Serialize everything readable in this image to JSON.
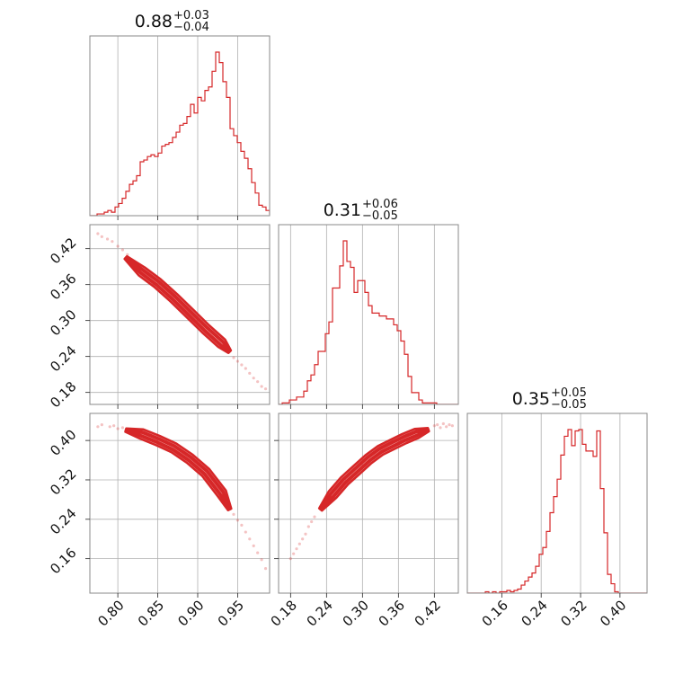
{
  "chart_data": {
    "type": "corner",
    "color": "#d62728",
    "grid": true,
    "parameters": [
      {
        "title": {
          "median": "0.88",
          "plus": "+0.03",
          "minus": "−0.04"
        },
        "range": [
          0.765,
          0.99
        ],
        "ticks": [
          0.8,
          0.85,
          0.9,
          0.95
        ],
        "tick_labels": [
          "0.80",
          "0.85",
          "0.90",
          "0.95"
        ],
        "hist": {
          "edges_start": 0.765,
          "bin_width": 0.0045,
          "counts": [
            0,
            0,
            1,
            1,
            2,
            3,
            2,
            5,
            7,
            10,
            14,
            18,
            20,
            23,
            31,
            32,
            34,
            35,
            34,
            36,
            40,
            41,
            42,
            45,
            48,
            52,
            53,
            57,
            64,
            59,
            68,
            66,
            72,
            74,
            83,
            94,
            88,
            77,
            68,
            50,
            46,
            42,
            37,
            33,
            27,
            19,
            13,
            6,
            5,
            3,
            1,
            1
          ]
        }
      },
      {
        "title": {
          "median": "0.31",
          "plus": "+0.06",
          "minus": "−0.05"
        },
        "range": [
          0.16,
          0.46
        ],
        "ticks": [
          0.18,
          0.24,
          0.3,
          0.36,
          0.42
        ],
        "tick_labels": [
          "0.18",
          "0.24",
          "0.30",
          "0.36",
          "0.42"
        ],
        "hist": {
          "edges_start": 0.16,
          "bin_width": 0.006,
          "counts": [
            0,
            1,
            1,
            3,
            3,
            5,
            5,
            9,
            16,
            20,
            27,
            36,
            36,
            48,
            56,
            79,
            79,
            94,
            111,
            97,
            93,
            76,
            84,
            84,
            76,
            67,
            62,
            62,
            60,
            60,
            58,
            58,
            54,
            50,
            43,
            34,
            19,
            8,
            8,
            3,
            1,
            1,
            1,
            1,
            0,
            0,
            0,
            0,
            0,
            0
          ]
        }
      },
      {
        "title": {
          "median": "0.35",
          "plus": "+0.05",
          "minus": "−0.05"
        },
        "range": [
          0.09,
          0.455
        ],
        "ticks": [
          0.16,
          0.24,
          0.32,
          0.4
        ],
        "tick_labels": [
          "0.16",
          "0.24",
          "0.32",
          "0.40"
        ],
        "hist": {
          "edges_start": 0.09,
          "bin_width": 0.0073,
          "counts": [
            0,
            0,
            0,
            0,
            0,
            1,
            0,
            1,
            0,
            1,
            1,
            2,
            1,
            2,
            3,
            6,
            9,
            12,
            15,
            20,
            29,
            34,
            46,
            60,
            72,
            85,
            103,
            117,
            122,
            110,
            121,
            122,
            111,
            106,
            106,
            102,
            121,
            78,
            45,
            14,
            7,
            1,
            0,
            0,
            0,
            0,
            0,
            0,
            0,
            0
          ]
        }
      }
    ],
    "pairs": [
      {
        "x_param": 0,
        "y_param": 1,
        "ridge": [
          [
            0.81,
            0.405
          ],
          [
            0.83,
            0.382
          ],
          [
            0.85,
            0.362
          ],
          [
            0.87,
            0.338
          ],
          [
            0.89,
            0.312
          ],
          [
            0.91,
            0.286
          ],
          [
            0.93,
            0.262
          ],
          [
            0.94,
            0.248
          ]
        ],
        "band_width": 0.006,
        "samples_tail": [
          [
            0.775,
            0.445
          ],
          [
            0.78,
            0.44
          ],
          [
            0.787,
            0.436
          ],
          [
            0.793,
            0.432
          ],
          [
            0.8,
            0.424
          ],
          [
            0.806,
            0.418
          ],
          [
            0.812,
            0.41
          ],
          [
            0.945,
            0.238
          ],
          [
            0.95,
            0.232
          ],
          [
            0.955,
            0.226
          ],
          [
            0.96,
            0.22
          ],
          [
            0.965,
            0.212
          ],
          [
            0.97,
            0.204
          ],
          [
            0.975,
            0.198
          ],
          [
            0.98,
            0.19
          ],
          [
            0.985,
            0.186
          ]
        ]
      },
      {
        "x_param": 0,
        "y_param": 2,
        "ridge": [
          [
            0.81,
            0.421
          ],
          [
            0.83,
            0.413
          ],
          [
            0.85,
            0.4
          ],
          [
            0.87,
            0.385
          ],
          [
            0.89,
            0.363
          ],
          [
            0.91,
            0.335
          ],
          [
            0.93,
            0.293
          ],
          [
            0.94,
            0.26
          ]
        ],
        "band_width": 0.007,
        "samples_tail": [
          [
            0.775,
            0.428
          ],
          [
            0.78,
            0.432
          ],
          [
            0.79,
            0.428
          ],
          [
            0.795,
            0.43
          ],
          [
            0.8,
            0.424
          ],
          [
            0.806,
            0.426
          ],
          [
            0.945,
            0.25
          ],
          [
            0.95,
            0.238
          ],
          [
            0.955,
            0.228
          ],
          [
            0.96,
            0.214
          ],
          [
            0.965,
            0.2
          ],
          [
            0.97,
            0.186
          ],
          [
            0.975,
            0.172
          ],
          [
            0.98,
            0.158
          ],
          [
            0.985,
            0.14
          ]
        ]
      },
      {
        "x_param": 1,
        "y_param": 2,
        "ridge": [
          [
            0.23,
            0.26
          ],
          [
            0.25,
            0.29
          ],
          [
            0.27,
            0.318
          ],
          [
            0.29,
            0.34
          ],
          [
            0.31,
            0.362
          ],
          [
            0.33,
            0.38
          ],
          [
            0.35,
            0.392
          ],
          [
            0.37,
            0.404
          ],
          [
            0.39,
            0.414
          ],
          [
            0.41,
            0.422
          ]
        ],
        "band_width": 0.007,
        "samples_tail": [
          [
            0.18,
            0.16
          ],
          [
            0.185,
            0.17
          ],
          [
            0.19,
            0.18
          ],
          [
            0.195,
            0.19
          ],
          [
            0.2,
            0.2
          ],
          [
            0.205,
            0.21
          ],
          [
            0.21,
            0.225
          ],
          [
            0.215,
            0.235
          ],
          [
            0.22,
            0.245
          ],
          [
            0.42,
            0.43
          ],
          [
            0.425,
            0.432
          ],
          [
            0.43,
            0.426
          ],
          [
            0.435,
            0.434
          ],
          [
            0.44,
            0.428
          ],
          [
            0.445,
            0.432
          ],
          [
            0.45,
            0.43
          ]
        ]
      }
    ]
  }
}
